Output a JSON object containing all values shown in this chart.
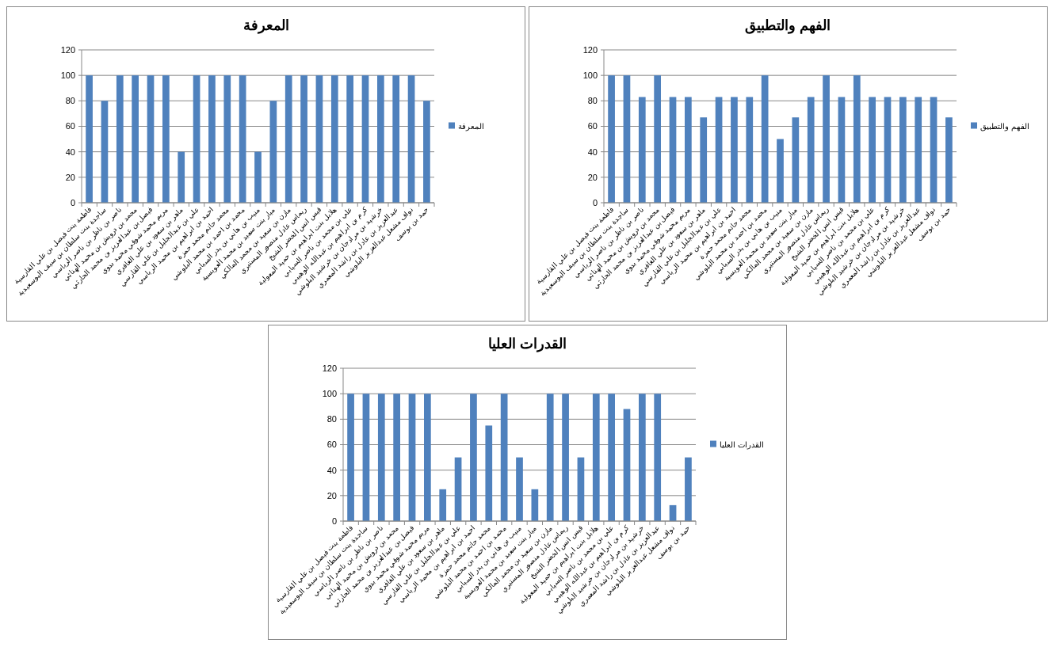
{
  "chart_data": [
    {
      "type": "bar",
      "title": "المعرفة",
      "categories": [
        "فاطمة بنت فيصل بن علي القارسية",
        "ساجدة بنت سلطان بن سيف البوسعيدية",
        "ناصر بن ناظر بن ناصر الرياسي",
        "محمد بن درويش بن محمد الهنائي",
        "فيصل بن عبدالعزيز بن محمد الحارثي",
        "مريم محمد شوقي محمد بدوي",
        "ماهر بن سعود بن علي الغافري",
        "علي بن عبدالجليل بن علي القارسي",
        "احمد بن ابراهيم بن محمد الرياسي",
        "محمد حاتم محمد حمزة",
        "محمد بن احمد بن محمد البلوشي",
        "منيب بن هاني بن بدر السيابي",
        "ميار بنت سعيد بن محمد العويسية",
        "مازن بن سعيد بن محمد المالكي",
        "ريماس عادل منصور المستيري",
        "قيس انس الخضر الشيخ",
        "هلابل بنت ابراهيم بن حميد المعولية",
        "علي بن محمد بن ناصر السيابي",
        "كرم بن ابراهيم بن عبدالله الوهيبي",
        "خرشيد بن مرادجان بن خرشيد البلوشي",
        "عبدالعزيز بن عادل بن راشد المعمري",
        "نواف مشعل عبدالعزيز البلوشي",
        "حمد بن يوسف"
      ],
      "series": [
        {
          "name": "المعرفة",
          "color": "#4f81bd",
          "values": [
            100,
            80,
            100,
            100,
            100,
            100,
            40,
            100,
            100,
            100,
            100,
            40,
            80,
            100,
            100,
            100,
            100,
            100,
            100,
            100,
            100,
            100,
            80
          ]
        }
      ],
      "ylim": [
        0,
        120
      ],
      "yticks": [
        0,
        20,
        40,
        60,
        80,
        100,
        120
      ],
      "grid": "y",
      "legend": "right"
    },
    {
      "type": "bar",
      "title": "الفهم والتطبيق",
      "categories": [
        "فاطمة بنت فيصل بن علي القارسية",
        "ساجدة بنت سلطان بن سيف البوسعيدية",
        "ناصر بن ناظر بن ناصر الرياسي",
        "محمد بن درويش بن محمد الهنائي",
        "فيصل بن عبدالعزيز بن محمد الحارثي",
        "مريم محمد شوقي محمد بدوي",
        "ماهر بن سعود بن علي الغافري",
        "علي بن عبدالجليل بن علي القارسي",
        "احمد بن ابراهيم بن محمد الرياسي",
        "محمد حاتم محمد حمزة",
        "محمد بن احمد بن محمد البلوشي",
        "منيب بن هاني بن بدر السيابي",
        "ميار بنت سعيد بن محمد العويسية",
        "مازن بن سعيد بن محمد المالكي",
        "ريماس عادل منصور المستيري",
        "قيس انس الخضر الشيخ",
        "هلابل بنت ابراهيم بن حميد المعولية",
        "علي بن محمد بن ناصر السيابي",
        "كرم بن ابراهيم بن عبدالله الوهيبي",
        "خرشيد بن مرادجان بن خرشيد البلوشي",
        "عبدالعزيز بن عادل بن راشد المعمري",
        "نواف مشعل عبدالعزيز البلوشي",
        "حمد بن يوسف"
      ],
      "series": [
        {
          "name": "الفهم والتطبيق",
          "color": "#4f81bd",
          "values": [
            100,
            100,
            83,
            100,
            83,
            83,
            67,
            83,
            83,
            83,
            100,
            50,
            67,
            83,
            100,
            83,
            100,
            83,
            83,
            83,
            83,
            83,
            67
          ]
        }
      ],
      "ylim": [
        0,
        120
      ],
      "yticks": [
        0,
        20,
        40,
        60,
        80,
        100,
        120
      ],
      "grid": "y",
      "legend": "right"
    },
    {
      "type": "bar",
      "title": "القدرات العليا",
      "categories": [
        "فاطمة بنت فيصل بن علي القارسية",
        "ساجدة بنت سلطان بن سيف البوسعيدية",
        "ناصر بن ناظر بن ناصر الرياسي",
        "محمد بن درويش بن محمد الهنائي",
        "فيصل بن عبدالعزيز بن محمد الحارثي",
        "مريم محمد شوقي محمد بدوي",
        "ماهر بن سعود بن علي الغافري",
        "علي بن عبدالجليل بن علي القارسي",
        "احمد بن ابراهيم بن محمد الرياسي",
        "محمد حاتم محمد حمزة",
        "محمد بن احمد بن محمد البلوشي",
        "منيب بن هاني بن بدر السيابي",
        "ميار بنت سعيد بن محمد العويسية",
        "مازن بن سعيد بن محمد المالكي",
        "ريماس عادل منصور المستيري",
        "قيس انس الخضر الشيخ",
        "هلابل بنت ابراهيم بن حميد المعولية",
        "علي بن محمد بن ناصر السيابي",
        "كرم بن ابراهيم بن عبدالله الوهيبي",
        "خرشيد بن مرادجان بن خرشيد البلوشي",
        "عبدالعزيز بن عادل بن راشد المعمري",
        "نواف مشعل عبدالعزيز البلوشي",
        "حمد بن يوسف"
      ],
      "series": [
        {
          "name": "القدرات العليا",
          "color": "#4f81bd",
          "values": [
            100,
            100,
            100,
            100,
            100,
            100,
            25,
            50,
            100,
            75,
            100,
            50,
            25,
            100,
            100,
            50,
            100,
            100,
            88,
            100,
            100,
            12.5,
            50
          ]
        }
      ],
      "ylim": [
        0,
        120
      ],
      "yticks": [
        0,
        20,
        40,
        60,
        80,
        100,
        120
      ],
      "grid": "y",
      "legend": "right"
    }
  ]
}
